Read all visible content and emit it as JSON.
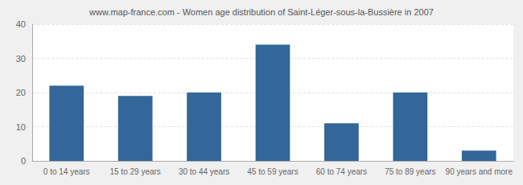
{
  "chart_data": {
    "type": "bar",
    "title": "www.map-france.com - Women age distribution of Saint-Léger-sous-la-Bussière in 2007",
    "categories": [
      "0 to 14 years",
      "15 to 29 years",
      "30 to 44 years",
      "45 to 59 years",
      "60 to 74 years",
      "75 to 89 years",
      "90 years and more"
    ],
    "values": [
      22,
      19,
      20,
      34,
      11,
      20,
      3
    ],
    "color": "#336699",
    "ylim": [
      0,
      40
    ],
    "yticks": [
      0,
      10,
      20,
      30,
      40
    ],
    "grid": true
  }
}
